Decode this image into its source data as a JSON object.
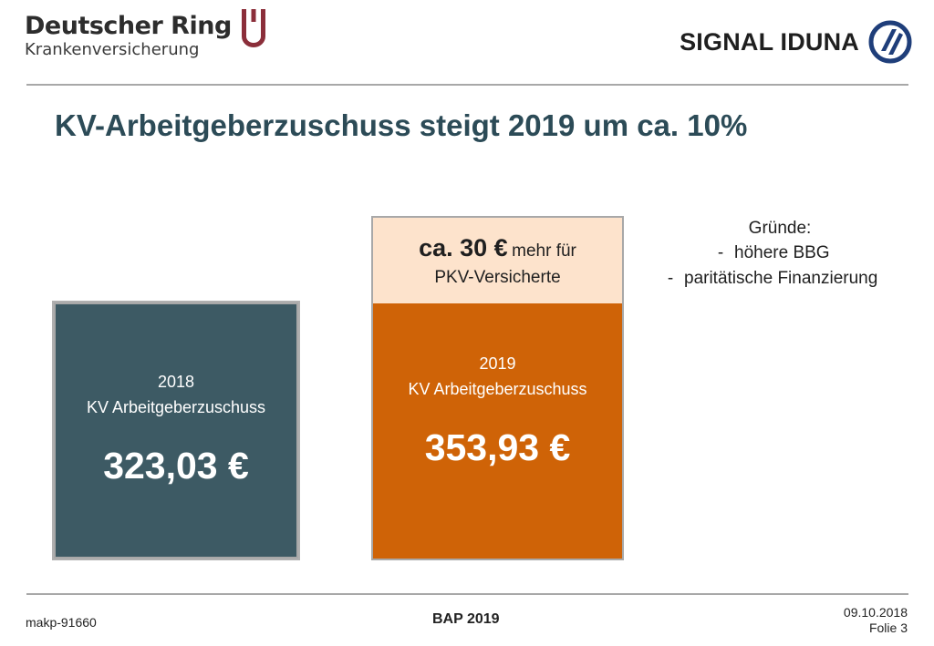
{
  "header": {
    "left_logo": {
      "name": "Deutscher Ring",
      "sub": "Krankenversicherung"
    },
    "right_logo": {
      "name": "SIGNAL IDUNA"
    }
  },
  "title": "KV-Arbeitgeberzuschuss steigt 2019 um ca. 10%",
  "box_2018": {
    "year": "2018",
    "label": "KV Arbeitgeberzuschuss",
    "amount": "323,03 €",
    "color": "#3d5a64"
  },
  "box_2019_extra": {
    "big": "ca. 30 €",
    "small": "mehr für",
    "line2": "PKV-Versicherte",
    "color": "#fde3cc"
  },
  "box_2019": {
    "year": "2019",
    "label": "KV Arbeitgeberzuschuss",
    "amount": "353,93 €",
    "color": "#cf6307"
  },
  "reasons": {
    "title": "Gründe:",
    "items": [
      {
        "dash": "-",
        "text": "höhere BBG"
      },
      {
        "dash": "-",
        "text": "paritätische Finanzierung"
      }
    ]
  },
  "footer": {
    "code": "makp-91660",
    "center": "BAP 2019",
    "date": "09.10.2018",
    "slide": "Folie 3"
  }
}
